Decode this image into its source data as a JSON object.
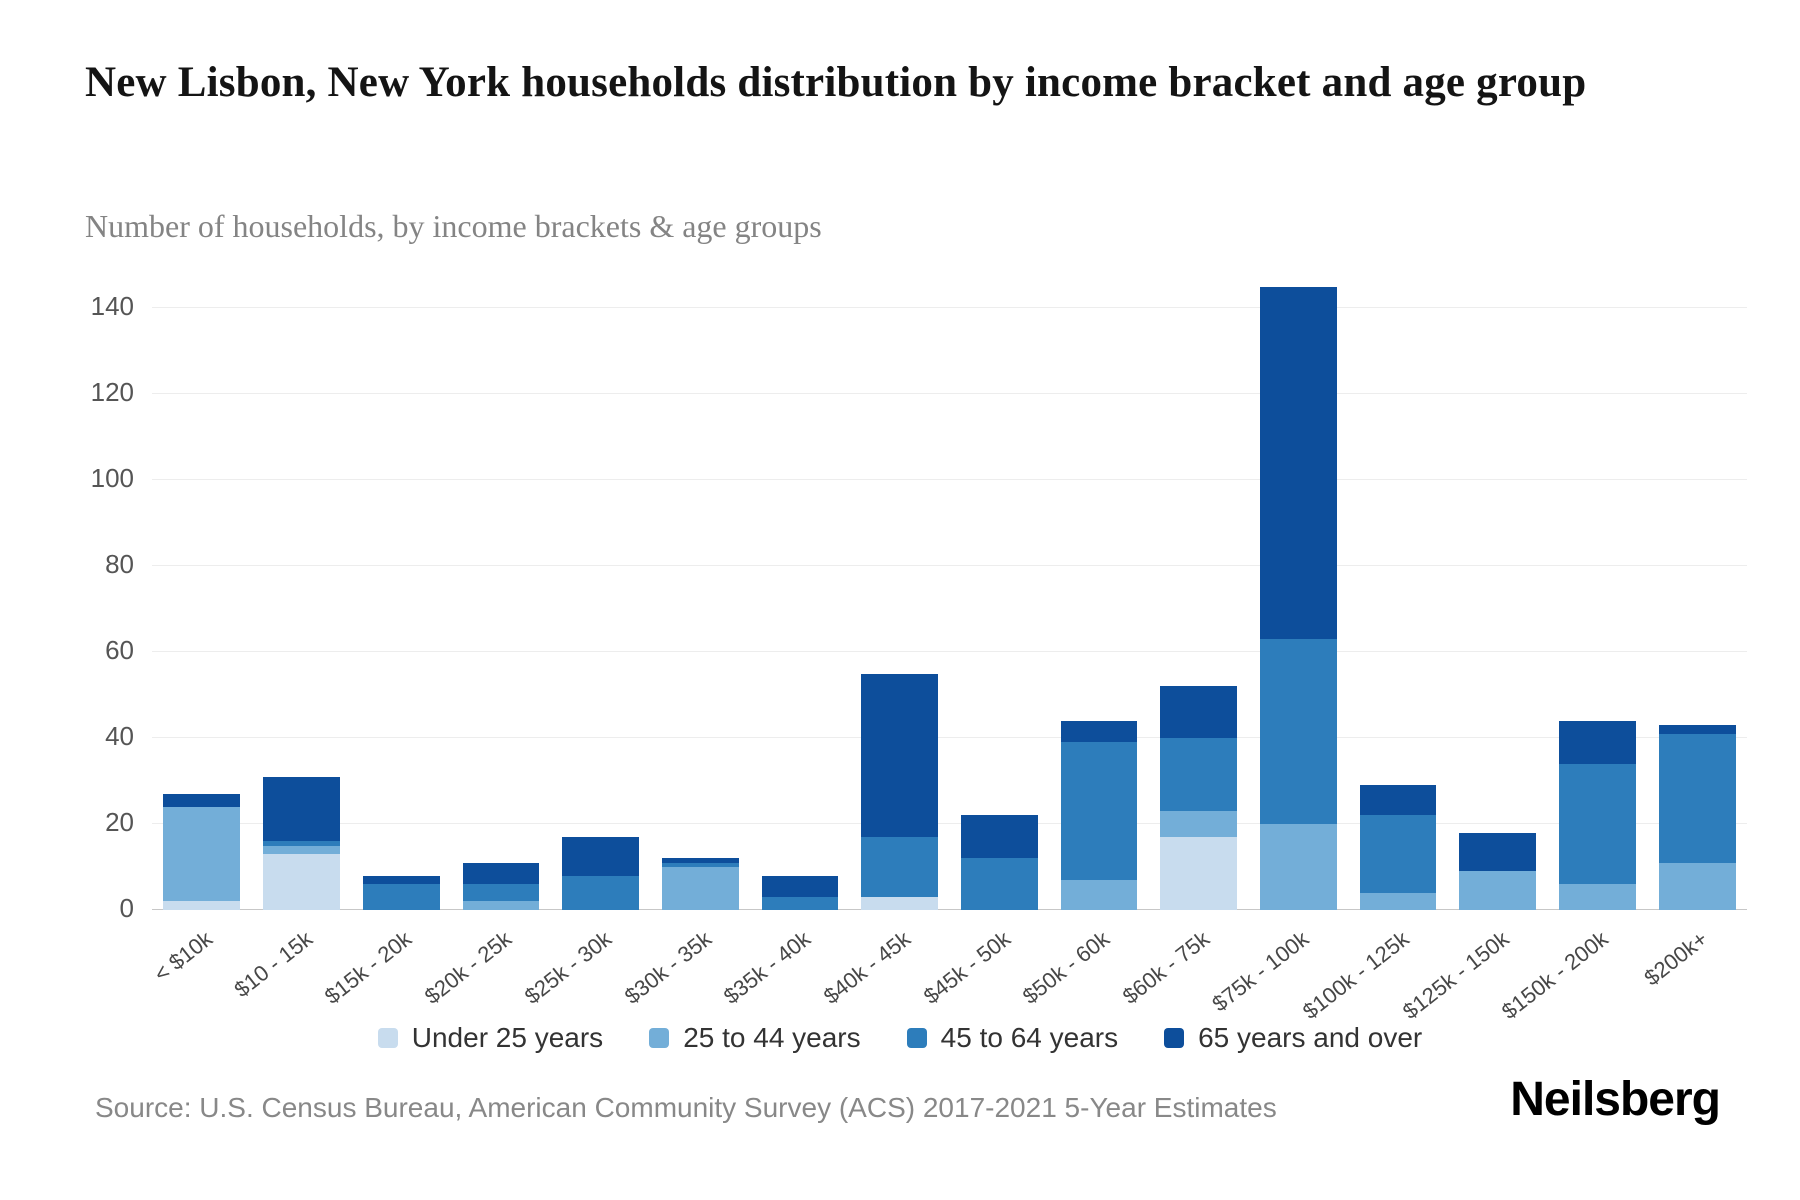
{
  "page": {
    "title": "New Lisbon, New York households distribution by income bracket and age group",
    "subtitle": "Number of households, by income brackets & age groups",
    "source": "Source: U.S. Census Bureau, American Community Survey (ACS) 2017-2021 5-Year Estimates",
    "brand": "Neilsberg"
  },
  "chart_data": {
    "type": "bar",
    "stacked": true,
    "title": "New Lisbon, New York households distribution by income bracket and age group",
    "subtitle": "Number of households, by income brackets & age groups",
    "categories": [
      "< $10k",
      "$10 - 15k",
      "$15k - 20k",
      "$20k - 25k",
      "$25k - 30k",
      "$30k - 35k",
      "$35k - 40k",
      "$40k - 45k",
      "$45k - 50k",
      "$50k - 60k",
      "$60k - 75k",
      "$75k - 100k",
      "$100k - 125k",
      "$125k - 150k",
      "$150k - 200k",
      "$200k+"
    ],
    "series": [
      {
        "name": "Under 25 years",
        "color": "#c8dcee",
        "values": [
          2,
          13,
          0,
          0,
          0,
          0,
          0,
          3,
          0,
          0,
          17,
          0,
          0,
          0,
          0,
          0
        ]
      },
      {
        "name": "25 to 44 years",
        "color": "#73aed8",
        "values": [
          22,
          2,
          0,
          2,
          0,
          10,
          0,
          0,
          0,
          7,
          6,
          20,
          4,
          9,
          6,
          11
        ]
      },
      {
        "name": "45 to 64 years",
        "color": "#2d7dbb",
        "values": [
          0,
          1,
          6,
          4,
          8,
          1,
          3,
          14,
          12,
          32,
          17,
          43,
          18,
          0,
          28,
          30
        ]
      },
      {
        "name": "65 years and over",
        "color": "#0d4e9b",
        "values": [
          3,
          15,
          2,
          5,
          9,
          1,
          5,
          38,
          10,
          5,
          12,
          82,
          7,
          9,
          10,
          2
        ]
      }
    ],
    "xlabel": "",
    "ylabel": "",
    "ylim": [
      0,
      150
    ],
    "yticks": [
      0,
      20,
      40,
      60,
      80,
      100,
      120,
      140
    ],
    "legend_position": "bottom",
    "grid": true
  }
}
